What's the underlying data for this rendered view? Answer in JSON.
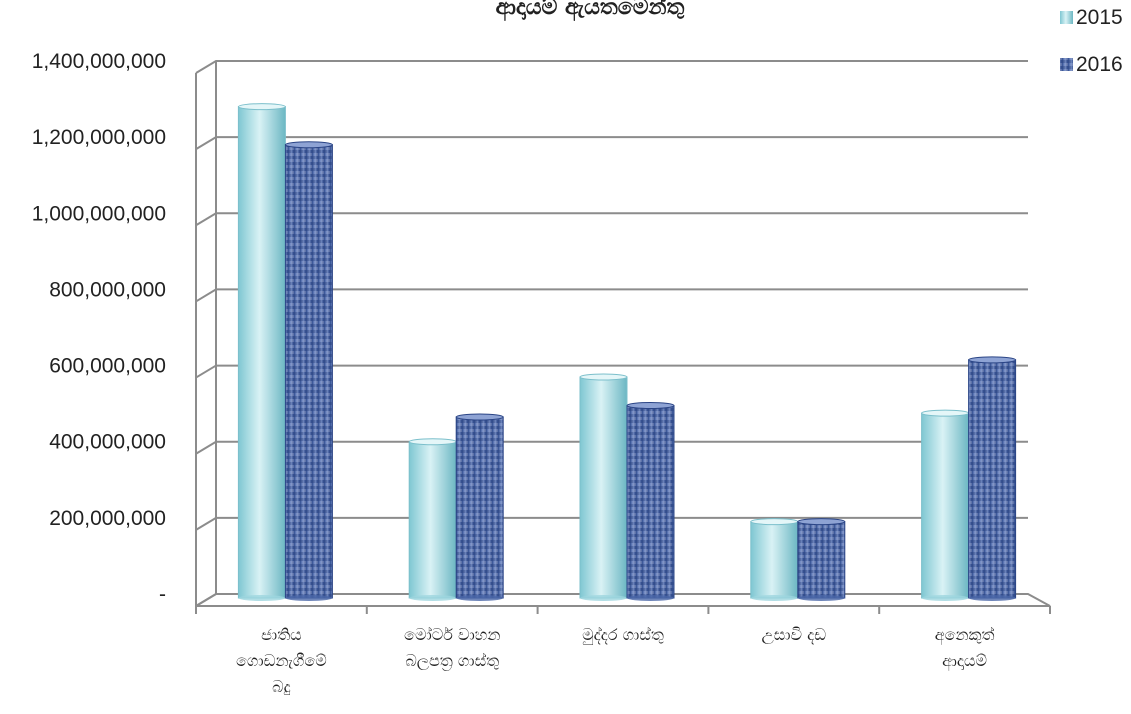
{
  "chart_data": {
    "type": "bar",
    "title": "ආදායම් ඇයතමෙන්තු",
    "categories": [
      [
        "ජාතිය",
        "ගොඩනැගීමේ",
        "බදු"
      ],
      [
        "මෝටර් වාහන",
        "බලපත්‍ර ගාස්තු"
      ],
      [
        "මුද්දර ගාස්තු"
      ],
      [
        "උසාවි දඩ"
      ],
      [
        "අනෙකුත්",
        "ආදායම්"
      ]
    ],
    "series": [
      {
        "name": "2015",
        "values": [
          1280000000,
          400000000,
          570000000,
          190000000,
          475000000
        ],
        "color": "#9ed6de"
      },
      {
        "name": "2016",
        "values": [
          1180000000,
          465000000,
          495000000,
          190000000,
          615000000
        ],
        "color": "#4a66a8"
      }
    ],
    "ylim": [
      0,
      1400000000
    ],
    "yticks": [
      0,
      200000000,
      400000000,
      600000000,
      800000000,
      1000000000,
      1200000000,
      1400000000
    ],
    "ytick_labels": [
      "-",
      "200,000,000",
      "400,000,000",
      "600,000,000",
      "800,000,000",
      "1,000,000,000",
      "1,200,000,000",
      "1,400,000,000"
    ],
    "grid": true,
    "legend_position": "top-right"
  }
}
